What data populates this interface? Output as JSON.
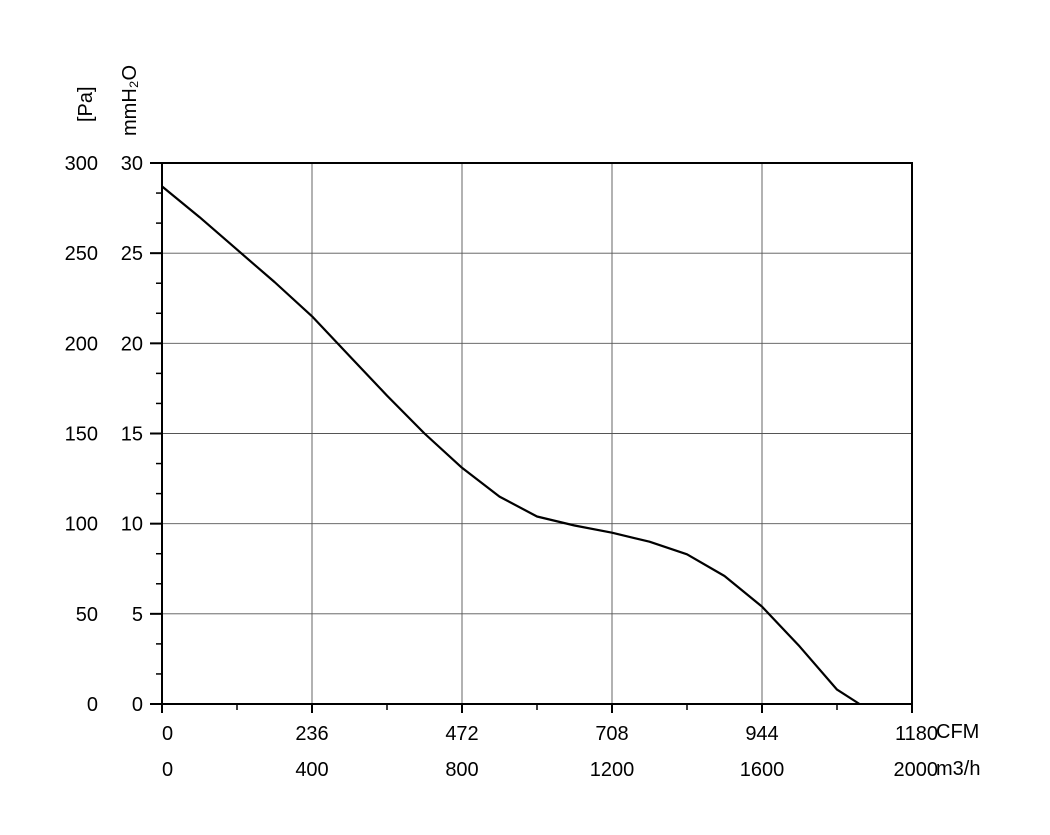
{
  "chart_data": {
    "type": "line",
    "title": "",
    "ylabel_primary": "[Pa]",
    "ylabel_secondary": "mmH₂O",
    "xlabel_primary": "CFM",
    "xlabel_secondary": "m3/h",
    "xlim": [
      0,
      2000
    ],
    "ylim": [
      0,
      300
    ],
    "grid": true,
    "x_ticks_m3h": [
      "0",
      "400",
      "800",
      "1200",
      "1600",
      "2000"
    ],
    "x_ticks_cfm": [
      "0",
      "236",
      "472",
      "708",
      "944",
      "1180"
    ],
    "y_ticks_pa": [
      "0",
      "50",
      "100",
      "150",
      "200",
      "250",
      "300"
    ],
    "y_ticks_mmh2o": [
      "0",
      "5",
      "10",
      "15",
      "20",
      "25",
      "30"
    ],
    "series": [
      {
        "x": [
          0,
          100,
          200,
          300,
          400,
          500,
          600,
          700,
          800,
          900,
          1000,
          1100,
          1200,
          1300,
          1400,
          1500,
          1600,
          1700,
          1800,
          1860
        ],
        "y": [
          287,
          270,
          252,
          234,
          215,
          193,
          171,
          150,
          131,
          115,
          104,
          99,
          95,
          90,
          83,
          71,
          54,
          32,
          8,
          0
        ]
      }
    ]
  }
}
